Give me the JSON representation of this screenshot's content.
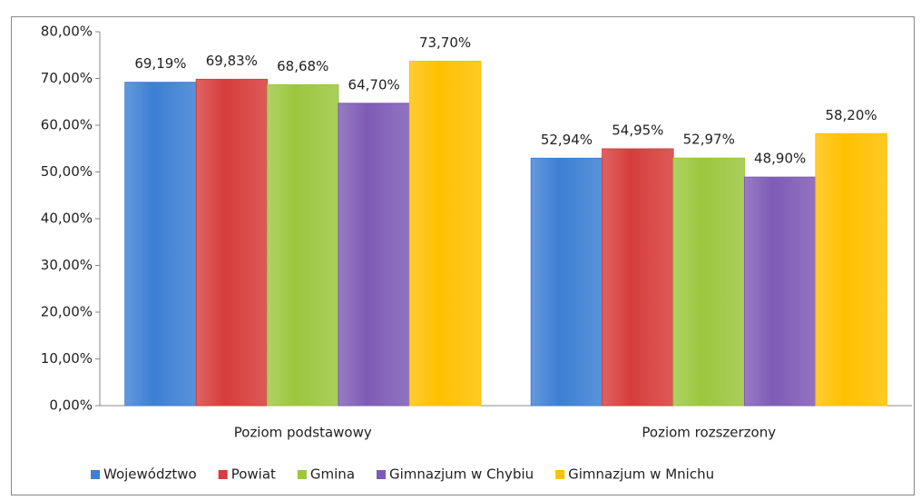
{
  "chart_data": {
    "type": "bar",
    "categories": [
      "Poziom podstawowy",
      "Poziom rozszerzony"
    ],
    "series": [
      {
        "name": "Województwo",
        "color": "#3d7fd4",
        "values": [
          69.19,
          52.94
        ],
        "value_labels": [
          "69,19%",
          "52,94%"
        ]
      },
      {
        "name": "Powiat",
        "color": "#d63d3b",
        "values": [
          69.83,
          54.95
        ],
        "value_labels": [
          "69,83%",
          "54,95%"
        ]
      },
      {
        "name": "Gmina",
        "color": "#9cc63e",
        "values": [
          68.68,
          52.97
        ],
        "value_labels": [
          "68,68%",
          "52,97%"
        ]
      },
      {
        "name": "Gimnazjum w Chybiu",
        "color": "#7e5bb6",
        "values": [
          64.7,
          48.9
        ],
        "value_labels": [
          "64,70%",
          "48,90%"
        ]
      },
      {
        "name": "Gimnazjum w Mnichu",
        "color": "#ffc000",
        "values": [
          73.7,
          58.2
        ],
        "value_labels": [
          "73,70%",
          "58,20%"
        ]
      }
    ],
    "ylim": [
      0,
      80
    ],
    "yticks": [
      {
        "value": 0,
        "label": "0,00%"
      },
      {
        "value": 10,
        "label": "10,00%"
      },
      {
        "value": 20,
        "label": "20,00%"
      },
      {
        "value": 30,
        "label": "30,00%"
      },
      {
        "value": 40,
        "label": "40,00%"
      },
      {
        "value": 50,
        "label": "50,00%"
      },
      {
        "value": 60,
        "label": "60,00%"
      },
      {
        "value": 70,
        "label": "70,00%"
      },
      {
        "value": 80,
        "label": "80,00%"
      }
    ],
    "grid": false,
    "legend": "bottom"
  }
}
